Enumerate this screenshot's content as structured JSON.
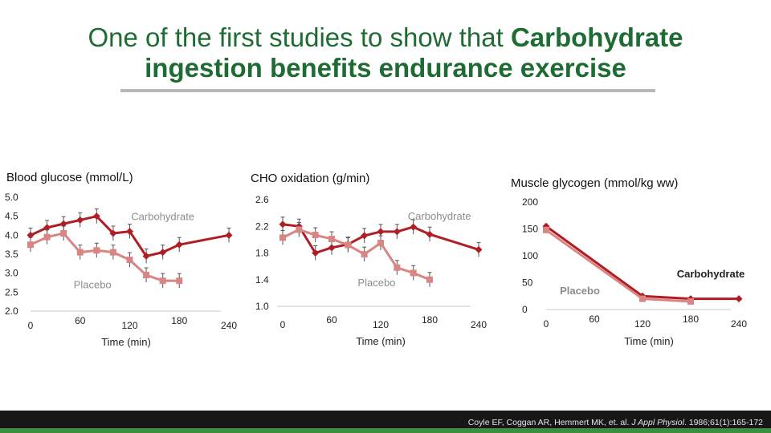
{
  "title": {
    "line1_plain": "One of the first studies to show that ",
    "line1_bold": "Carbohydrate",
    "line2_bold": "ingestion benefits endurance exercise"
  },
  "colors": {
    "title": "#1e6b34",
    "carbohydrate": "#b01e24",
    "placebo": "#d98584"
  },
  "citation": {
    "authors": "Coyle EF, Coggan AR, Hemmert MK, et. al. ",
    "journal": "J Appl Physiol",
    "ref": ". 1986;61(1):165-172"
  },
  "chart_data": [
    {
      "type": "line",
      "title": "Blood glucose (mmol/L)",
      "xlabel": "Time (min)",
      "ylabel": "",
      "xlim": [
        0,
        240
      ],
      "ylim": [
        2.0,
        5.0
      ],
      "xticks": [
        "0",
        "60",
        "120",
        "180",
        "240"
      ],
      "yticks": [
        "2.0",
        "2.5",
        "3.0",
        "3.5",
        "4.0",
        "4.5",
        "5.0"
      ],
      "series": [
        {
          "name": "Carbohydrate",
          "x": [
            0,
            20,
            40,
            60,
            80,
            100,
            120,
            140,
            160,
            180,
            240
          ],
          "y": [
            4.0,
            4.2,
            4.3,
            4.4,
            4.5,
            4.05,
            4.1,
            3.45,
            3.55,
            3.75,
            4.0
          ],
          "label_x": 160,
          "label_y": 4.4
        },
        {
          "name": "Placebo",
          "x": [
            0,
            20,
            40,
            60,
            80,
            100,
            120,
            140,
            160,
            180
          ],
          "y": [
            3.75,
            3.95,
            4.05,
            3.55,
            3.6,
            3.55,
            3.35,
            2.95,
            2.8,
            2.8
          ],
          "label_x": 75,
          "label_y": 2.6
        }
      ]
    },
    {
      "type": "line",
      "title": "CHO oxidation (g/min)",
      "xlabel": "Time (min)",
      "ylabel": "",
      "xlim": [
        0,
        240
      ],
      "ylim": [
        1.0,
        2.6
      ],
      "xticks": [
        "0",
        "60",
        "120",
        "180",
        "240"
      ],
      "yticks": [
        "1.0",
        "1.4",
        "1.8",
        "2.2",
        "2.6"
      ],
      "series": [
        {
          "name": "Carbohydrate",
          "x": [
            0,
            20,
            40,
            60,
            80,
            100,
            120,
            140,
            160,
            180,
            240
          ],
          "y": [
            2.23,
            2.2,
            1.8,
            1.88,
            1.93,
            2.06,
            2.12,
            2.12,
            2.19,
            2.08,
            1.85
          ],
          "label_x": 192,
          "label_y": 2.3
        },
        {
          "name": "Placebo",
          "x": [
            0,
            20,
            40,
            60,
            80,
            100,
            120,
            140,
            160,
            180
          ],
          "y": [
            2.03,
            2.15,
            2.07,
            2.01,
            1.92,
            1.78,
            1.95,
            1.58,
            1.5,
            1.4
          ],
          "label_x": 115,
          "label_y": 1.3
        }
      ]
    },
    {
      "type": "line",
      "title": "Muscle glycogen (mmol/kg ww)",
      "xlabel": "Time (min)",
      "ylabel": "",
      "xlim": [
        0,
        240
      ],
      "ylim": [
        0,
        200
      ],
      "xticks": [
        "0",
        "60",
        "120",
        "180",
        "240"
      ],
      "yticks": [
        "0",
        "50",
        "100",
        "150",
        "200"
      ],
      "series": [
        {
          "name": "Carbohydrate",
          "x": [
            0,
            120,
            180,
            240
          ],
          "y": [
            155,
            25,
            20,
            20
          ],
          "label_x": 205,
          "label_y": 60
        },
        {
          "name": "Placebo",
          "x": [
            0,
            120,
            180
          ],
          "y": [
            148,
            20,
            15
          ],
          "label_x": 42,
          "label_y": 28
        }
      ]
    }
  ]
}
